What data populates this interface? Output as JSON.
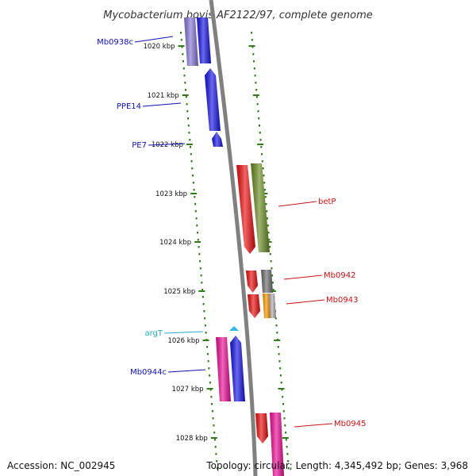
{
  "title": "Mycobacterium bovis AF2122/97, complete genome",
  "footer": {
    "accession": "Accession: NC_002945",
    "stats": "Topology: circular; Length: 4,345,492 bp; Genes: 3,968"
  },
  "colors": {
    "backbone": "#808080",
    "ticks": "#2e7d16",
    "minus_label": "#1010bb",
    "plus_label": "#cc1111",
    "trna_label": "#22aacc"
  },
  "ticks": [
    {
      "label": "1020 kbp"
    },
    {
      "label": "1021 kbp"
    },
    {
      "label": "1022 kbp"
    },
    {
      "label": "1023 kbp"
    },
    {
      "label": "1024 kbp"
    },
    {
      "label": "1025 kbp"
    },
    {
      "label": "1026 kbp"
    },
    {
      "label": "1027 kbp"
    },
    {
      "label": "1028 kbp"
    }
  ],
  "labels": [
    {
      "text": "Mb0938c",
      "strand": "minus"
    },
    {
      "text": "PPE14",
      "strand": "minus"
    },
    {
      "text": "PE7",
      "strand": "minus"
    },
    {
      "text": "betP",
      "strand": "plus"
    },
    {
      "text": "Mb0942",
      "strand": "plus"
    },
    {
      "text": "Mb0943",
      "strand": "plus"
    },
    {
      "text": "argT",
      "strand": "trna"
    },
    {
      "text": "Mb0944c",
      "strand": "minus"
    },
    {
      "text": "Mb0945",
      "strand": "plus"
    }
  ],
  "genes": [
    {
      "id": "mb0938c-purple",
      "color": "#8878d8"
    },
    {
      "id": "mb0938c-blue",
      "color": "#1818e8"
    },
    {
      "id": "ppe14",
      "color": "#1818e8"
    },
    {
      "id": "pe7",
      "color": "#1818e8"
    },
    {
      "id": "betp-red",
      "color": "#ee1111"
    },
    {
      "id": "betp-olive",
      "color": "#6b8e23"
    },
    {
      "id": "mb0942-red",
      "color": "#ee1111"
    },
    {
      "id": "mb0942-gray",
      "color": "#707070"
    },
    {
      "id": "mb0943-red",
      "color": "#ee1111"
    },
    {
      "id": "mb0943-orange",
      "color": "#ff9900"
    },
    {
      "id": "mb0943-gray",
      "color": "#b0b0b0"
    },
    {
      "id": "argt",
      "color": "#33bbee"
    },
    {
      "id": "mb0944c-pink",
      "color": "#ee1199"
    },
    {
      "id": "mb0944c-blue",
      "color": "#1818e8"
    },
    {
      "id": "mb0945-red",
      "color": "#ee1111"
    },
    {
      "id": "mb0945-pink",
      "color": "#ee1199"
    }
  ]
}
